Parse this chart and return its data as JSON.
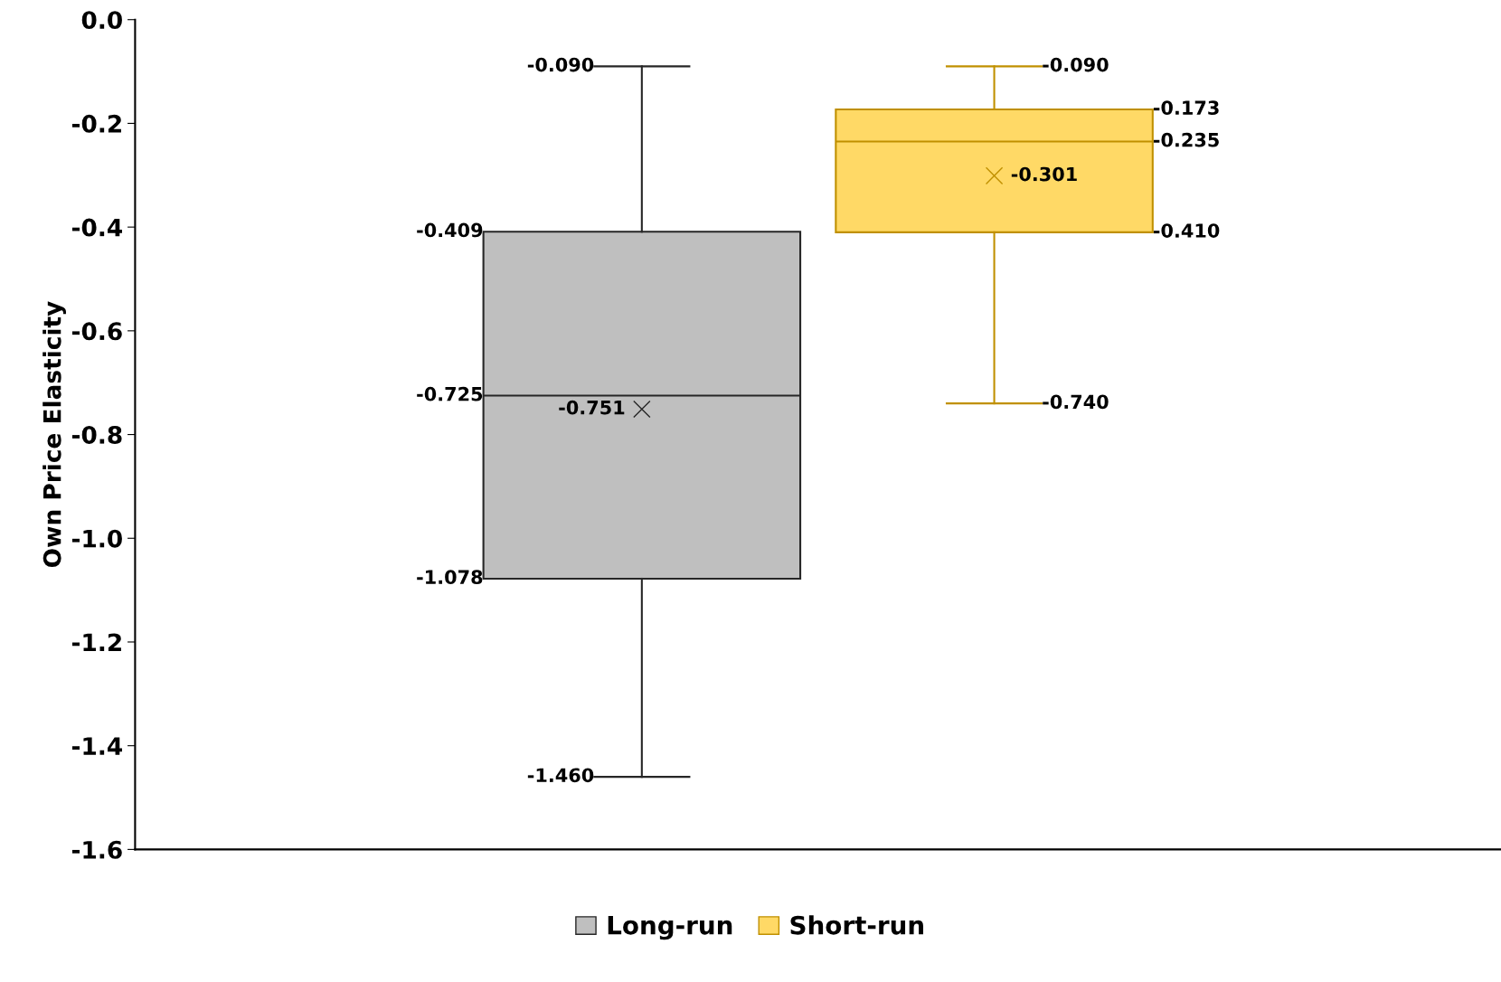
{
  "chart_data": {
    "type": "box",
    "ylabel": "Own Price Elasticity",
    "categories": [
      null
    ],
    "ylim": [
      -1.6,
      0.0
    ],
    "yticks": [
      {
        "value": 0.0,
        "label": "0.0"
      },
      {
        "value": -0.2,
        "label": "-0.2"
      },
      {
        "value": -0.4,
        "label": "-0.4"
      },
      {
        "value": -0.6,
        "label": "-0.6"
      },
      {
        "value": -0.8,
        "label": "-0.8"
      },
      {
        "value": -1.0,
        "label": "-1.0"
      },
      {
        "value": -1.2,
        "label": "-1.2"
      },
      {
        "value": -1.4,
        "label": "-1.4"
      },
      {
        "value": -1.6,
        "label": "-1.6"
      }
    ],
    "tick_labels": "y",
    "grid": false,
    "legend": "bottom",
    "data_labels": true,
    "marker": "cross",
    "annotations": [
      "-1.460",
      "-1.078",
      "-0.725",
      "-0.409",
      "-0.090",
      "-0.751",
      "-0.740",
      "-0.410",
      "-0.235",
      "-0.173",
      "-0.090",
      "-0.301"
    ],
    "series": [
      {
        "name": "Long-run",
        "color": "#bfbfbf",
        "boxes": [
          {
            "low": -1.46,
            "q1": -1.078,
            "median": -0.725,
            "q3": -0.409,
            "high": -0.09,
            "mean": -0.751
          }
        ]
      },
      {
        "name": "Short-run",
        "color": "#ffd966",
        "boxes": [
          {
            "low": -0.74,
            "q1": -0.41,
            "median": -0.235,
            "q3": -0.173,
            "high": -0.09,
            "mean": -0.301
          }
        ]
      }
    ]
  }
}
